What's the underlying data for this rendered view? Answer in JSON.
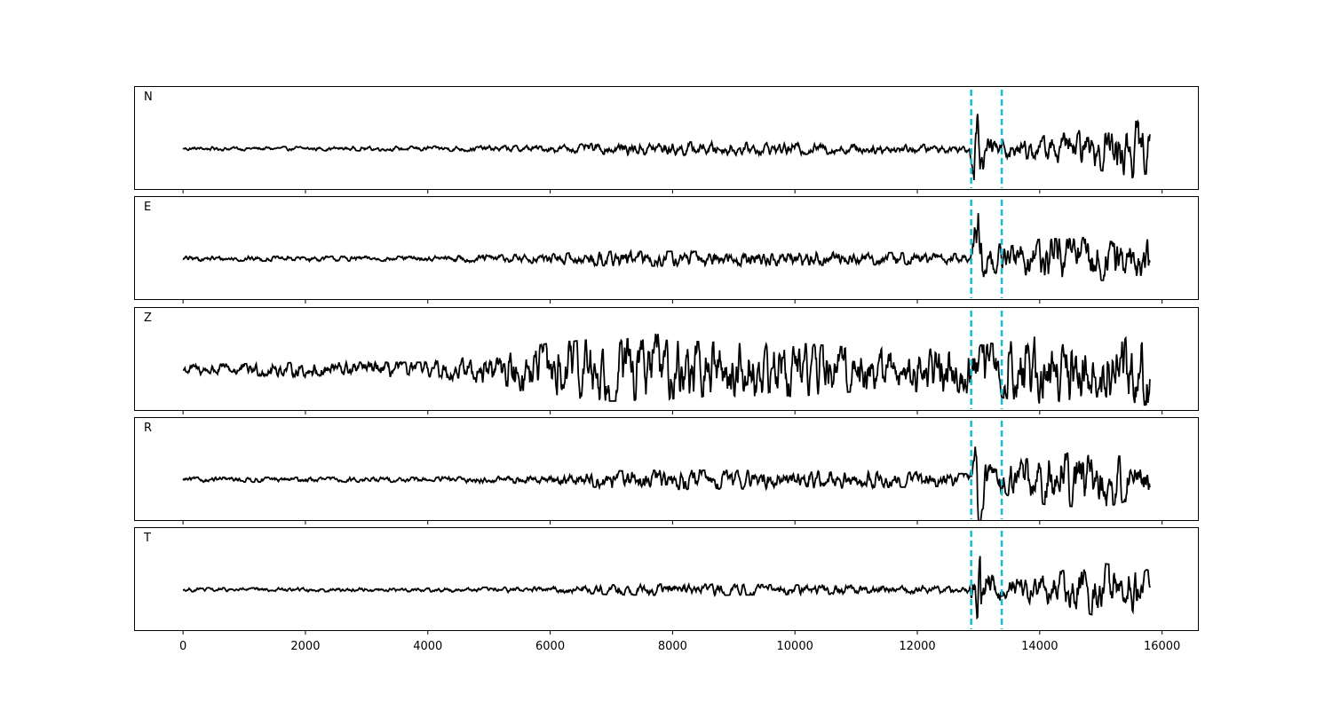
{
  "chart_data": {
    "type": "line",
    "title": "",
    "xlabel": "",
    "ylabel": "",
    "xlim": [
      -800,
      16600
    ],
    "x_ticks": [
      0,
      2000,
      4000,
      6000,
      8000,
      10000,
      12000,
      14000,
      16000
    ],
    "x_tick_labels": [
      "0",
      "2000",
      "4000",
      "6000",
      "8000",
      "10000",
      "12000",
      "14000",
      "16000"
    ],
    "x_range": [
      0,
      15800
    ],
    "markers": [
      12880,
      13380
    ],
    "colors": {
      "trace": "#000000",
      "marker": "#17becf",
      "frame": "#000000"
    },
    "grid": false,
    "legend": "none",
    "panels": [
      {
        "label": "N",
        "ylim": [
          -1,
          1
        ],
        "envelope": [
          [
            0,
            0.04
          ],
          [
            2000,
            0.04
          ],
          [
            4000,
            0.05
          ],
          [
            6000,
            0.07
          ],
          [
            7000,
            0.12
          ],
          [
            8000,
            0.14
          ],
          [
            10000,
            0.12
          ],
          [
            12000,
            0.09
          ],
          [
            12850,
            0.08
          ],
          [
            12960,
            0.95
          ],
          [
            13100,
            0.3
          ],
          [
            13400,
            0.2
          ],
          [
            14000,
            0.25
          ],
          [
            15000,
            0.45
          ],
          [
            15500,
            0.6
          ],
          [
            15800,
            0.5
          ]
        ],
        "spike": {
          "x": 13000,
          "amplitude": 1.0
        }
      },
      {
        "label": "E",
        "ylim": [
          -1,
          1
        ],
        "envelope": [
          [
            0,
            0.05
          ],
          [
            2000,
            0.05
          ],
          [
            4000,
            0.05
          ],
          [
            6000,
            0.1
          ],
          [
            7000,
            0.15
          ],
          [
            8000,
            0.15
          ],
          [
            10000,
            0.14
          ],
          [
            12000,
            0.12
          ],
          [
            12850,
            0.1
          ],
          [
            12970,
            0.95
          ],
          [
            13100,
            0.3
          ],
          [
            13400,
            0.3
          ],
          [
            14000,
            0.4
          ],
          [
            15000,
            0.45
          ],
          [
            15800,
            0.4
          ]
        ],
        "spike": {
          "x": 12990,
          "amplitude": 1.0
        }
      },
      {
        "label": "Z",
        "ylim": [
          -1,
          1
        ],
        "envelope": [
          [
            0,
            0.1
          ],
          [
            1000,
            0.12
          ],
          [
            2000,
            0.15
          ],
          [
            4000,
            0.15
          ],
          [
            5000,
            0.3
          ],
          [
            6000,
            0.55
          ],
          [
            7000,
            0.65
          ],
          [
            8000,
            0.6
          ],
          [
            9000,
            0.55
          ],
          [
            10000,
            0.55
          ],
          [
            11000,
            0.45
          ],
          [
            12000,
            0.45
          ],
          [
            13000,
            0.5
          ],
          [
            14000,
            0.7
          ],
          [
            15000,
            0.55
          ],
          [
            15800,
            0.75
          ]
        ],
        "spike": {
          "x": 7750,
          "amplitude": 0.9
        }
      },
      {
        "label": "R",
        "ylim": [
          -1,
          1
        ],
        "envelope": [
          [
            0,
            0.05
          ],
          [
            2000,
            0.05
          ],
          [
            4000,
            0.05
          ],
          [
            6000,
            0.08
          ],
          [
            7000,
            0.18
          ],
          [
            8000,
            0.2
          ],
          [
            10000,
            0.18
          ],
          [
            12000,
            0.15
          ],
          [
            12850,
            0.12
          ],
          [
            13000,
            0.95
          ],
          [
            13150,
            0.3
          ],
          [
            13400,
            0.3
          ],
          [
            14000,
            0.5
          ],
          [
            15000,
            0.6
          ],
          [
            15800,
            0.3
          ]
        ],
        "spike": {
          "x": 13010,
          "amplitude": -1.0
        }
      },
      {
        "label": "T",
        "ylim": [
          -1,
          1
        ],
        "envelope": [
          [
            0,
            0.04
          ],
          [
            2000,
            0.04
          ],
          [
            4000,
            0.04
          ],
          [
            6000,
            0.06
          ],
          [
            7000,
            0.1
          ],
          [
            8000,
            0.12
          ],
          [
            10000,
            0.1
          ],
          [
            12000,
            0.08
          ],
          [
            12850,
            0.06
          ],
          [
            12990,
            0.95
          ],
          [
            13150,
            0.35
          ],
          [
            13400,
            0.2
          ],
          [
            14000,
            0.3
          ],
          [
            15000,
            0.55
          ],
          [
            15800,
            0.4
          ]
        ],
        "spike": {
          "x": 13010,
          "amplitude": 1.0
        }
      }
    ]
  }
}
